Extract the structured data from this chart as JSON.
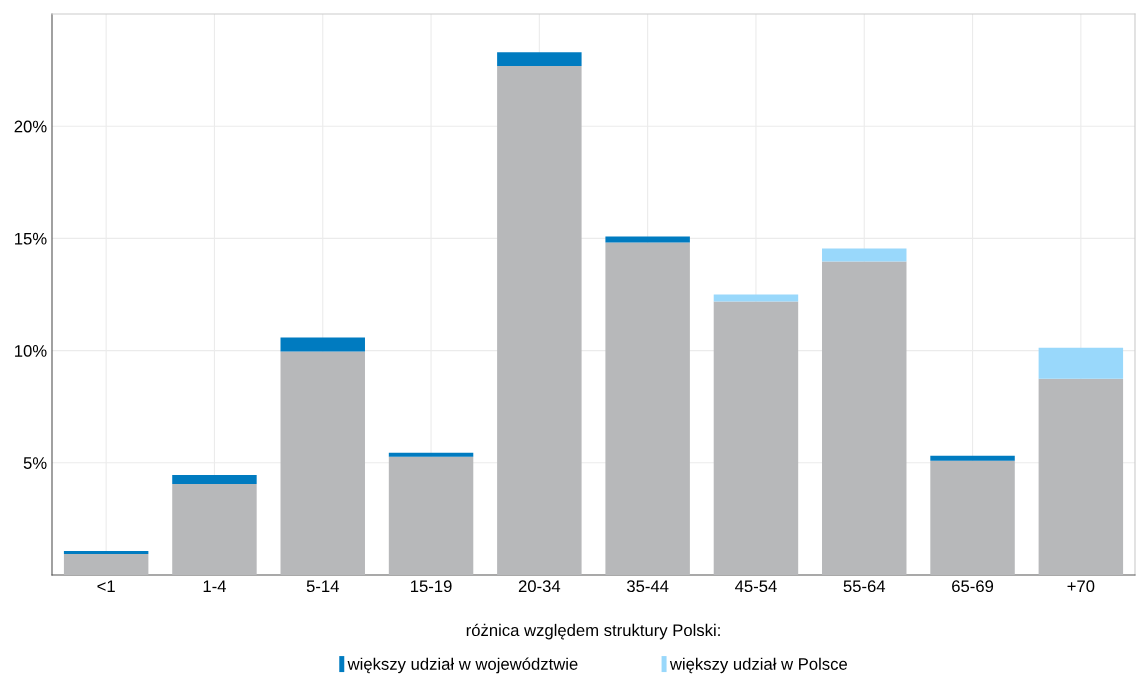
{
  "chart_data": {
    "type": "bar",
    "stacked": true,
    "categories": [
      "<1",
      "1-4",
      "5-14",
      "15-19",
      "20-34",
      "35-44",
      "45-54",
      "55-64",
      "65-69",
      "+70"
    ],
    "series": [
      {
        "color": "#b7b8ba",
        "values": [
          0.94,
          4.06,
          9.96,
          5.27,
          22.68,
          14.82,
          12.19,
          13.97,
          5.09,
          8.75
        ]
      },
      {
        "name": "większy udział w województwie",
        "color": "#007bc0",
        "values": [
          0.13,
          0.4,
          0.62,
          0.18,
          0.62,
          0.27,
          null,
          null,
          0.22,
          null
        ]
      },
      {
        "name": "większy udział w Polsce",
        "color": "#99d8fb",
        "values": [
          null,
          null,
          null,
          null,
          null,
          null,
          0.31,
          0.58,
          null,
          1.38
        ]
      }
    ],
    "ylim": [
      0,
      25
    ],
    "yticks": [
      {
        "value": 5,
        "label": "5%"
      },
      {
        "value": 10,
        "label": "10%"
      },
      {
        "value": 15,
        "label": "15%"
      },
      {
        "value": 20,
        "label": "20%"
      }
    ],
    "grid": true,
    "legend": "bottom",
    "legend_title": "różnica względem struktury Polski:"
  }
}
